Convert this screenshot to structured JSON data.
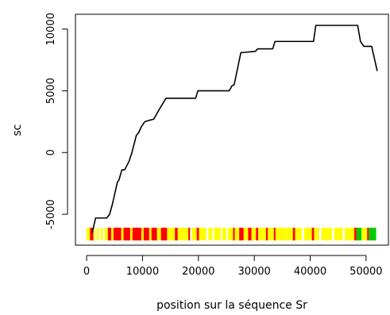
{
  "chart_data": {
    "type": "line",
    "xlabel": "position sur la séquence Sr",
    "ylabel": "sc",
    "xlim": [
      -2000,
      54000
    ],
    "ylim": [
      -7500,
      11200
    ],
    "x_ticks": [
      0,
      10000,
      20000,
      30000,
      40000,
      50000
    ],
    "x_tick_labels": [
      "0",
      "10000",
      "20000",
      "30000",
      "40000",
      "50000"
    ],
    "y_ticks": [
      -5000,
      0,
      5000,
      10000
    ],
    "y_tick_labels": [
      "-5000",
      "0",
      "5000",
      "10000"
    ],
    "grid": false,
    "series": [
      {
        "color": "#000000",
        "x": [
          1000,
          1600,
          3600,
          4100,
          4600,
          5000,
          5500,
          5800,
          6300,
          6800,
          7600,
          8100,
          8500,
          8900,
          9300,
          9800,
          10400,
          11100,
          12000,
          13000,
          14200,
          19500,
          19900,
          25500,
          26000,
          26400,
          27600,
          27900,
          30200,
          30600,
          33300,
          33700,
          40600,
          41000,
          48500,
          49000,
          49600,
          51000,
          52000
        ],
        "y": [
          -6500,
          -5300,
          -5300,
          -5000,
          -4200,
          -3400,
          -2400,
          -2200,
          -1400,
          -1400,
          -700,
          0,
          700,
          1400,
          1600,
          2100,
          2500,
          2600,
          2700,
          3500,
          4400,
          4400,
          5000,
          5000,
          5400,
          5500,
          8100,
          8100,
          8200,
          8400,
          8400,
          9000,
          9000,
          10300,
          10300,
          9000,
          8600,
          8600,
          6600
        ]
      }
    ],
    "track": {
      "y": -6600,
      "colors": {
        "red": "#ff0000",
        "yellow": "#ffff00",
        "green": "#00cc00"
      },
      "segments": [
        {
          "start": 0,
          "end": 600,
          "color": "yellow"
        },
        {
          "start": 600,
          "end": 1200,
          "color": "red"
        },
        {
          "start": 1200,
          "end": 1500,
          "color": "yellow"
        },
        {
          "start": 1800,
          "end": 2200,
          "color": "yellow"
        },
        {
          "start": 2500,
          "end": 2900,
          "color": "yellow"
        },
        {
          "start": 3200,
          "end": 3800,
          "color": "yellow"
        },
        {
          "start": 3800,
          "end": 4400,
          "color": "red"
        },
        {
          "start": 4400,
          "end": 4800,
          "color": "yellow"
        },
        {
          "start": 4800,
          "end": 6200,
          "color": "red"
        },
        {
          "start": 6200,
          "end": 6600,
          "color": "yellow"
        },
        {
          "start": 6600,
          "end": 7800,
          "color": "red"
        },
        {
          "start": 7800,
          "end": 8200,
          "color": "yellow"
        },
        {
          "start": 8200,
          "end": 9800,
          "color": "red"
        },
        {
          "start": 9800,
          "end": 10200,
          "color": "yellow"
        },
        {
          "start": 10200,
          "end": 11200,
          "color": "red"
        },
        {
          "start": 11200,
          "end": 11600,
          "color": "yellow"
        },
        {
          "start": 11600,
          "end": 12600,
          "color": "red"
        },
        {
          "start": 12600,
          "end": 13300,
          "color": "yellow"
        },
        {
          "start": 13300,
          "end": 14400,
          "color": "red"
        },
        {
          "start": 14400,
          "end": 15800,
          "color": "yellow"
        },
        {
          "start": 15800,
          "end": 16300,
          "color": "red"
        },
        {
          "start": 16300,
          "end": 18200,
          "color": "yellow"
        },
        {
          "start": 18200,
          "end": 18500,
          "color": "red"
        },
        {
          "start": 18800,
          "end": 19700,
          "color": "yellow"
        },
        {
          "start": 19700,
          "end": 20100,
          "color": "red"
        },
        {
          "start": 20100,
          "end": 21400,
          "color": "yellow"
        },
        {
          "start": 21800,
          "end": 22500,
          "color": "yellow"
        },
        {
          "start": 22800,
          "end": 24000,
          "color": "yellow"
        },
        {
          "start": 24300,
          "end": 25000,
          "color": "yellow"
        },
        {
          "start": 25300,
          "end": 26200,
          "color": "yellow"
        },
        {
          "start": 26200,
          "end": 26500,
          "color": "red"
        },
        {
          "start": 26500,
          "end": 27300,
          "color": "yellow"
        },
        {
          "start": 27300,
          "end": 28100,
          "color": "red"
        },
        {
          "start": 28100,
          "end": 28900,
          "color": "yellow"
        },
        {
          "start": 28900,
          "end": 29500,
          "color": "red"
        },
        {
          "start": 29500,
          "end": 30300,
          "color": "yellow"
        },
        {
          "start": 30300,
          "end": 30700,
          "color": "red"
        },
        {
          "start": 30700,
          "end": 32100,
          "color": "yellow"
        },
        {
          "start": 32100,
          "end": 32400,
          "color": "red"
        },
        {
          "start": 32400,
          "end": 33500,
          "color": "yellow"
        },
        {
          "start": 33500,
          "end": 33800,
          "color": "red"
        },
        {
          "start": 33800,
          "end": 36900,
          "color": "yellow"
        },
        {
          "start": 36900,
          "end": 37300,
          "color": "red"
        },
        {
          "start": 37300,
          "end": 38500,
          "color": "yellow"
        },
        {
          "start": 38900,
          "end": 40300,
          "color": "yellow"
        },
        {
          "start": 40300,
          "end": 40700,
          "color": "red"
        },
        {
          "start": 40700,
          "end": 41600,
          "color": "yellow"
        },
        {
          "start": 42000,
          "end": 43900,
          "color": "yellow"
        },
        {
          "start": 44300,
          "end": 45800,
          "color": "yellow"
        },
        {
          "start": 46200,
          "end": 47900,
          "color": "yellow"
        },
        {
          "start": 47900,
          "end": 48300,
          "color": "red"
        },
        {
          "start": 48300,
          "end": 49200,
          "color": "green"
        },
        {
          "start": 49200,
          "end": 50200,
          "color": "yellow"
        },
        {
          "start": 50200,
          "end": 50500,
          "color": "red"
        },
        {
          "start": 50500,
          "end": 51800,
          "color": "green"
        }
      ]
    }
  }
}
